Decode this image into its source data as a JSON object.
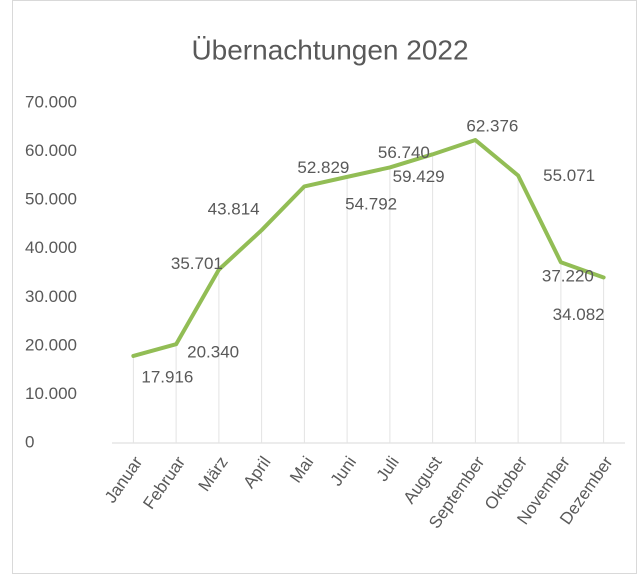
{
  "chart_data": {
    "type": "line",
    "title": "Übernachtungen 2022",
    "categories": [
      "Januar",
      "Februar",
      "März",
      "April",
      "Mai",
      "Juni",
      "Juli",
      "August",
      "September",
      "Oktober",
      "November",
      "Dezember"
    ],
    "values": [
      17916,
      20340,
      35701,
      43814,
      52829,
      54792,
      56740,
      59429,
      62376,
      55071,
      37220,
      34082
    ],
    "value_labels": [
      "17.916",
      "20.340",
      "35.701",
      "43.814",
      "52.829",
      "54.792",
      "56.740",
      "59.429",
      "62.376",
      "55.071",
      "37.220",
      "34.082"
    ],
    "color": "#92bd55",
    "ylim": [
      0,
      70000
    ],
    "yticks": [
      {
        "value": 0,
        "label": "0"
      },
      {
        "value": 10000,
        "label": "10.000"
      },
      {
        "value": 20000,
        "label": "20.000"
      },
      {
        "value": 30000,
        "label": "30.000"
      },
      {
        "value": 40000,
        "label": "40.000"
      },
      {
        "value": 50000,
        "label": "50.000"
      },
      {
        "value": 60000,
        "label": "60.000"
      },
      {
        "value": 70000,
        "label": "70.000"
      }
    ]
  }
}
